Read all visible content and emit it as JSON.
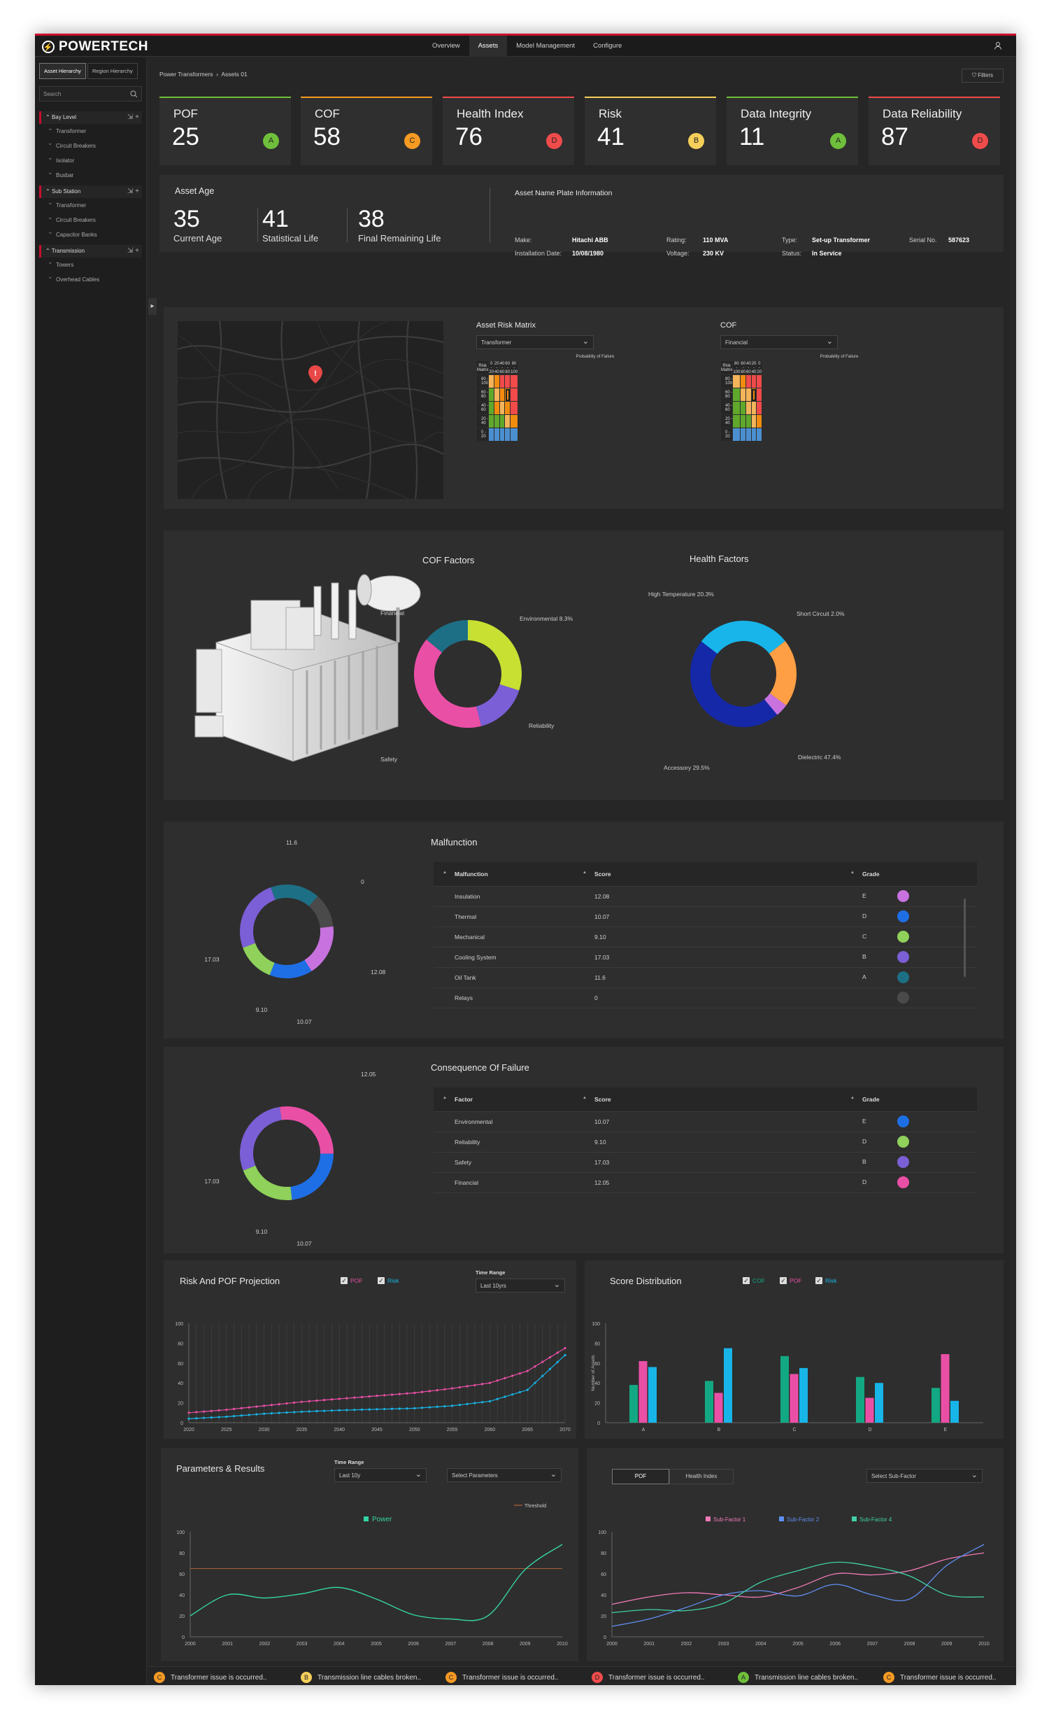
{
  "app": {
    "logo": "POWERTECH",
    "nav": [
      "Overview",
      "Assets",
      "Model Management",
      "Configure"
    ],
    "active_nav": "Assets"
  },
  "sidebar": {
    "tabs": [
      "Asset Hierarchy",
      "Region Hierarchy"
    ],
    "search_placeholder": "Search",
    "groups": [
      {
        "label": "Bay Level",
        "items": [
          "Transformer",
          "Circuit Breakers",
          "Isolator",
          "Busbar"
        ]
      },
      {
        "label": "Sub Station",
        "items": [
          "Transformer",
          "Circuit Breakers",
          "Capacitor Banks"
        ]
      },
      {
        "label": "Transmission",
        "items": [
          "Towers",
          "Overhead Cables"
        ]
      }
    ]
  },
  "breadcrumb": [
    "Power Transformers",
    "Assets 01"
  ],
  "filters_label": "Filters",
  "kpis": [
    {
      "label": "POF",
      "value": "25",
      "grade": "A",
      "color": "#6fbf3b"
    },
    {
      "label": "COF",
      "value": "58",
      "grade": "C",
      "color": "#f59a23"
    },
    {
      "label": "Health Index",
      "value": "76",
      "grade": "D",
      "color": "#f04b4b"
    },
    {
      "label": "Risk",
      "value": "41",
      "grade": "B",
      "color": "#f5cf5a"
    },
    {
      "label": "Data Integrity",
      "value": "11",
      "grade": "A",
      "color": "#6fbf3b"
    },
    {
      "label": "Data Reliability",
      "value": "87",
      "grade": "D",
      "color": "#f04b4b"
    }
  ],
  "age": {
    "title": "Asset Age",
    "items": [
      {
        "value": "35",
        "caption": "Current Age"
      },
      {
        "value": "41",
        "caption": "Statistical Life"
      },
      {
        "value": "38",
        "caption": "Final Remaining Life"
      }
    ]
  },
  "nameplate": {
    "title": "Asset Name Plate Information",
    "make_label": "Make:",
    "make": "Hitachi ABB",
    "install_label": "Installation Date:",
    "install": "10/08/1980",
    "rating_label": "Rating:",
    "rating": "110 MVA",
    "voltage_label": "Voltage:",
    "voltage": "230 KV",
    "type_label": "Type:",
    "type": "Set-up Transformer",
    "status_label": "Status:",
    "status": "In Service",
    "serial_label": "Serial No.",
    "serial": "587623"
  },
  "risk_matrix": {
    "title": "Asset Risk Matrix",
    "select": "Transformer",
    "cof_title": "COF",
    "cof_select": "Financial",
    "corner": "Risk Matrix",
    "x_title": "Probability of Failure",
    "y_title": "Consequence of Failure",
    "cols": [
      "0 - 20",
      "20 - 40",
      "40 - 60",
      "60 - 80",
      "80 - 100"
    ],
    "cof_cols": [
      "80 - 100",
      "60 - 80",
      "40 - 60",
      "20 - 40",
      "0 - 20"
    ],
    "rows": [
      "80 - 100",
      "60 - 80",
      "40 - 60",
      "20 - 40",
      "0 - 20"
    ],
    "colors": {
      "G": "#5fa82c",
      "Y": "#f4b45a",
      "O": "#f28c0f",
      "R": "#f04a4a",
      "B": "#4b8fd0"
    },
    "grid": [
      [
        "Y",
        "O",
        "R",
        "R",
        "R"
      ],
      [
        "G",
        "Y",
        "O",
        "O",
        "R"
      ],
      [
        "G",
        "O",
        "Y",
        "O",
        "R"
      ],
      [
        "G",
        "G",
        "G",
        "Y",
        "O"
      ],
      [
        "B",
        "B",
        "B",
        "B",
        "B"
      ]
    ],
    "cof_grid": [
      [
        "Y",
        "O",
        "R",
        "R",
        "R"
      ],
      [
        "G",
        "Y",
        "Y",
        "O",
        "R"
      ],
      [
        "G",
        "G",
        "Y",
        "Y",
        "R"
      ],
      [
        "G",
        "G",
        "G",
        "Y",
        "O"
      ],
      [
        "B",
        "B",
        "B",
        "B",
        "B"
      ]
    ]
  },
  "cof_factors": {
    "title": "COF Factors",
    "labels": [
      "Financial",
      "Environmental 8.3%",
      "Reliability",
      "Safety"
    ]
  },
  "health_factors": {
    "title": "Health Factors",
    "labels": [
      "High Temperature 20.3%",
      "Short Circuit 2.0%",
      "Dielectric 47.4%",
      "Accessory 29.5%"
    ]
  },
  "malfunction": {
    "title": "Malfunction",
    "headers": [
      "Malfunction",
      "Score",
      "Grade"
    ],
    "rows": [
      {
        "name": "Insulation",
        "score": "12.08",
        "grade": "E",
        "color": "#c872e0"
      },
      {
        "name": "Thermal",
        "score": "10.07",
        "grade": "D",
        "color": "#1e6fe6"
      },
      {
        "name": "Mechanical",
        "score": "9.10",
        "grade": "C",
        "color": "#8fd15a"
      },
      {
        "name": "Cooling System",
        "score": "17.03",
        "grade": "B",
        "color": "#7b5fd6"
      },
      {
        "name": "Oil Tank",
        "score": "11.6",
        "grade": "A",
        "color": "#1d6f85"
      },
      {
        "name": "Relays",
        "score": "0",
        "grade": "",
        "color": "#4a4a4a"
      }
    ],
    "donut_labels": [
      "11.6",
      "0",
      "12.08",
      "10.07",
      "9.10",
      "17.03"
    ]
  },
  "cof_table": {
    "title": "Consequence Of Failure",
    "headers": [
      "Factor",
      "Score",
      "Grade"
    ],
    "rows": [
      {
        "name": "Environmental",
        "score": "10.07",
        "grade": "E",
        "color": "#1e6fe6"
      },
      {
        "name": "Reliability",
        "score": "9.10",
        "grade": "D",
        "color": "#8fd15a"
      },
      {
        "name": "Safety",
        "score": "17.03",
        "grade": "B",
        "color": "#7b5fd6"
      },
      {
        "name": "Financial",
        "score": "12.05",
        "grade": "D",
        "color": "#ea4fa6"
      }
    ],
    "donut_labels": [
      "12.05",
      "10.07",
      "9.10",
      "17.03"
    ]
  },
  "projection": {
    "title": "Risk And POF Projection",
    "checks": [
      "POF",
      "Risk"
    ],
    "time_label": "Time Range",
    "time_value": "Last 10yrs"
  },
  "distribution": {
    "title": "Score Distribution",
    "checks": [
      "COF",
      "POF",
      "Risk"
    ]
  },
  "params": {
    "title": "Parameters & Results",
    "time_label": "Time Range",
    "time_value": "Last 10y",
    "select": "Select Parameters",
    "threshold": "Threshold",
    "legend": "Power"
  },
  "pof_panel": {
    "tabs": [
      "POF",
      "Health Index"
    ],
    "select": "Select Sub-Factor"
  },
  "chart_data": [
    {
      "type": "line",
      "title": "Risk And POF Projection",
      "x": [
        2020,
        2021,
        2022,
        2023,
        2024,
        2025,
        2026,
        2027,
        2028,
        2029,
        2030,
        2031,
        2032,
        2033,
        2034,
        2035,
        2036,
        2037,
        2038,
        2039,
        2040,
        2041,
        2042,
        2043,
        2044,
        2045,
        2046,
        2047,
        2048,
        2049,
        2050,
        2051,
        2052,
        2053,
        2054,
        2055,
        2056,
        2057,
        2058,
        2059,
        2060,
        2061,
        2062,
        2063,
        2064,
        2065,
        2066,
        2067,
        2068,
        2069,
        2070
      ],
      "xticks": [
        "2020",
        "2025",
        "2030",
        "2035",
        "2040",
        "2045",
        "2050",
        "2055",
        "2060",
        "2065",
        "2070"
      ],
      "yticks": [
        "0",
        "20",
        "40",
        "60",
        "80",
        "100"
      ],
      "ylim": [
        0,
        100
      ],
      "series": [
        {
          "name": "POF",
          "color": "#ea4fa6",
          "values": [
            10,
            10.6,
            11.2,
            11.8,
            12.4,
            13,
            13.8,
            14.6,
            15.4,
            16.2,
            17,
            17.8,
            18.6,
            19.4,
            20.2,
            21,
            21.6,
            22.2,
            22.8,
            23.4,
            24,
            24.6,
            25.2,
            25.8,
            26.4,
            27,
            27.6,
            28.2,
            28.8,
            29.4,
            30,
            30.9,
            31.8,
            32.7,
            33.6,
            34.5,
            35.6,
            36.7,
            37.8,
            38.9,
            40,
            42.4,
            44.8,
            47.2,
            49.6,
            52,
            56.6,
            61.2,
            65.8,
            70.4,
            75
          ]
        },
        {
          "name": "Risk",
          "color": "#17b5e8",
          "values": [
            4,
            4.4,
            4.8,
            5.2,
            5.6,
            6,
            6.6,
            7.2,
            7.8,
            8.4,
            9,
            9.4,
            9.8,
            10.2,
            10.6,
            11,
            11.3,
            11.6,
            11.9,
            12.2,
            12.5,
            12.7,
            12.9,
            13.1,
            13.3,
            13.5,
            13.7,
            13.9,
            14.1,
            14.3,
            14.5,
            15,
            15.5,
            16,
            16.5,
            17,
            17.9,
            18.8,
            19.7,
            20.6,
            21.5,
            23.8,
            26.1,
            28.4,
            30.7,
            33,
            40,
            47,
            54,
            61,
            68
          ]
        }
      ]
    },
    {
      "type": "bar",
      "title": "Score Distribution",
      "ylabel": "Number of Assets",
      "categories": [
        "A",
        "B",
        "C",
        "D",
        "E"
      ],
      "ylim": [
        0,
        100
      ],
      "yticks": [
        "0",
        "20",
        "40",
        "60",
        "80",
        "100"
      ],
      "series": [
        {
          "name": "COF",
          "color": "#13a884",
          "values": [
            38,
            42,
            67,
            46,
            35
          ]
        },
        {
          "name": "POF",
          "color": "#ea4fa6",
          "values": [
            62,
            30,
            49,
            25,
            69
          ]
        },
        {
          "name": "Risk",
          "color": "#17b5e8",
          "values": [
            56,
            75,
            55,
            40,
            22
          ]
        }
      ]
    },
    {
      "type": "line",
      "title": "Parameters & Results",
      "x": [
        "2000",
        "2001",
        "2002",
        "2003",
        "2004",
        "2005",
        "2006",
        "2007",
        "2008",
        "2009",
        "2010"
      ],
      "yticks": [
        "0",
        "20",
        "40",
        "60",
        "80",
        "100"
      ],
      "ylim": [
        0,
        100
      ],
      "threshold": 65,
      "series": [
        {
          "name": "Power",
          "color": "#34d4a4",
          "values": [
            20,
            40,
            37,
            41,
            47,
            36,
            21,
            17,
            20,
            64,
            88
          ]
        }
      ]
    },
    {
      "type": "line",
      "title": "POF",
      "x": [
        "2000",
        "2001",
        "2002",
        "2003",
        "2004",
        "2005",
        "2006",
        "2007",
        "2008",
        "2009",
        "2010"
      ],
      "yticks": [
        "0",
        "20",
        "40",
        "60",
        "80",
        "100"
      ],
      "ylim": [
        0,
        100
      ],
      "series": [
        {
          "name": "Sub-Factor 1",
          "color": "#f07ab8",
          "values": [
            31,
            38,
            42,
            40,
            38,
            47,
            60,
            59,
            63,
            74,
            80
          ]
        },
        {
          "name": "Sub-Factor 2",
          "color": "#5f8ef0",
          "values": [
            10,
            17,
            28,
            40,
            44,
            39,
            50,
            40,
            36,
            68,
            88
          ]
        },
        {
          "name": "Sub-Factor 4",
          "color": "#3fd0a6",
          "values": [
            23,
            26,
            25,
            32,
            52,
            63,
            71,
            67,
            58,
            40,
            38
          ]
        }
      ]
    }
  ],
  "alerts": [
    {
      "grade": "C",
      "color": "#f59a23",
      "text": "Transformer issue is occurred.."
    },
    {
      "grade": "B",
      "color": "#f5cf5a",
      "text": "Transmission line cables broken.."
    },
    {
      "grade": "C",
      "color": "#f59a23",
      "text": "Transformer issue is occurred.."
    },
    {
      "grade": "D",
      "color": "#f04b4b",
      "text": "Transformer issue is occurred.."
    },
    {
      "grade": "A",
      "color": "#6fbf3b",
      "text": "Transmission line cables broken.."
    },
    {
      "grade": "C",
      "color": "#f59a23",
      "text": "Transformer issue is occurred.."
    }
  ]
}
